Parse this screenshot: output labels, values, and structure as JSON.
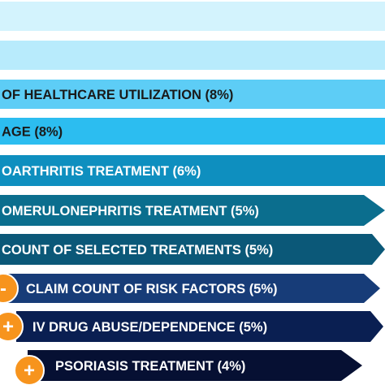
{
  "chart_data": {
    "type": "bar",
    "orientation": "horizontal",
    "title": "",
    "xlabel": "",
    "ylabel": "",
    "categories": [
      "",
      "",
      "OF HEALTHCARE UTILIZATION (8%)",
      "AGE (8%)",
      "OARTHRITIS TREATMENT (6%)",
      "OMERULONEPHRITIS TREATMENT (5%)",
      "COUNT OF SELECTED TREATMENTS (5%)",
      "CLAIM COUNT OF RISK FACTORS (5%)",
      "IV DRUG ABUSE/DEPENDENCE (5%)",
      "PSORIASIS TREATMENT (4%)"
    ],
    "values": [
      null,
      null,
      8,
      8,
      6,
      5,
      5,
      5,
      5,
      4
    ],
    "unit": "%",
    "badges": [
      "",
      "",
      "",
      "",
      "",
      "",
      "",
      "-",
      "+",
      "+"
    ],
    "colors": {
      "bars": [
        "#d3f3fd",
        "#b8ebfc",
        "#5dcdf6",
        "#2cbdf0",
        "#0e8fbf",
        "#0b6e8e",
        "#0b5878",
        "#173c78",
        "#0a1f52",
        "#061033"
      ],
      "text_light": "#ffffff",
      "text_dark": "#1a1a1a",
      "badge": "#f7941d"
    }
  }
}
